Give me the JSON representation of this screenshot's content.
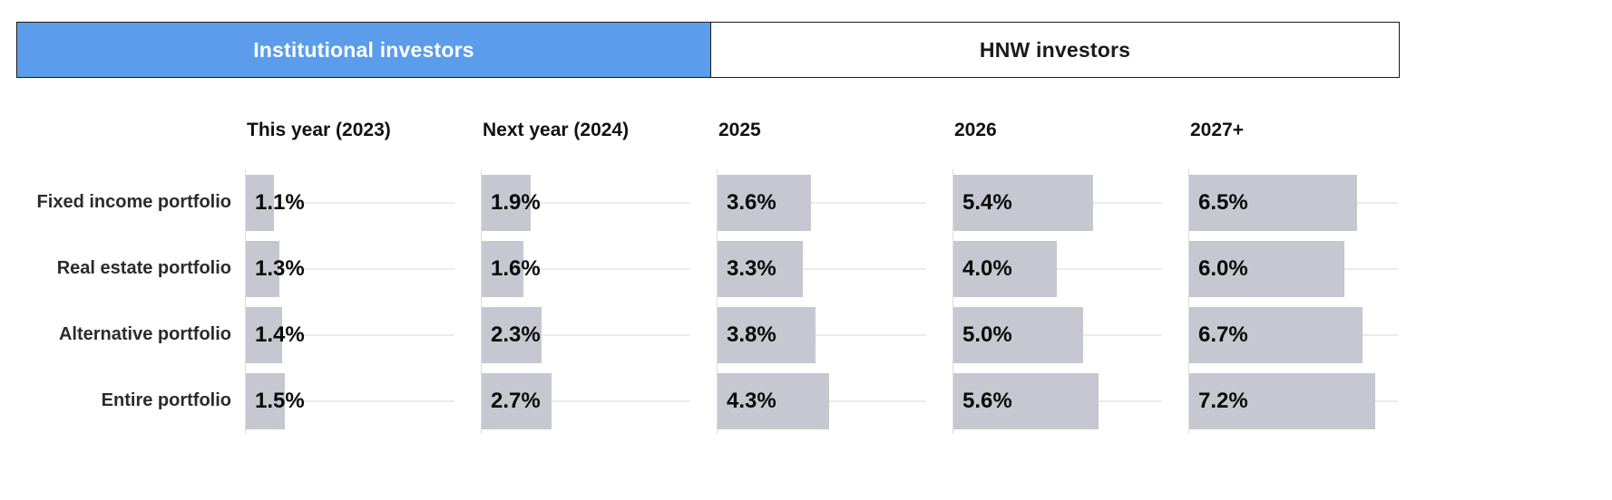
{
  "tabs": [
    {
      "label": "Institutional investors",
      "active": true
    },
    {
      "label": "HNW investors",
      "active": false
    }
  ],
  "colors": {
    "accent_blue": "#5b9ceb",
    "bar_gray": "#c6c7d1"
  },
  "chart_data": {
    "type": "bar",
    "orientation": "horizontal",
    "title": "",
    "columns": [
      "This year (2023)",
      "Next year (2024)",
      "2025",
      "2026",
      "2027+"
    ],
    "rows": [
      "Fixed income portfolio",
      "Real estate portfolio",
      "Alternative portfolio",
      "Entire portfolio"
    ],
    "values": [
      [
        1.1,
        1.9,
        3.6,
        5.4,
        6.5
      ],
      [
        1.3,
        1.6,
        3.3,
        4.0,
        6.0
      ],
      [
        1.4,
        2.3,
        3.8,
        5.0,
        6.7
      ],
      [
        1.5,
        2.7,
        4.3,
        5.6,
        7.2
      ]
    ],
    "unit": "%",
    "value_labels": [
      [
        "1.1%",
        "1.9%",
        "3.6%",
        "5.4%",
        "6.5%"
      ],
      [
        "1.3%",
        "1.6%",
        "3.3%",
        "4.0%",
        "6.0%"
      ],
      [
        "1.4%",
        "2.3%",
        "3.8%",
        "5.0%",
        "6.7%"
      ],
      [
        "1.5%",
        "2.7%",
        "4.3%",
        "5.6%",
        "7.2%"
      ]
    ],
    "xlim": [
      0,
      8
    ],
    "grid": "horizontal-track-per-row",
    "legend": "none"
  }
}
